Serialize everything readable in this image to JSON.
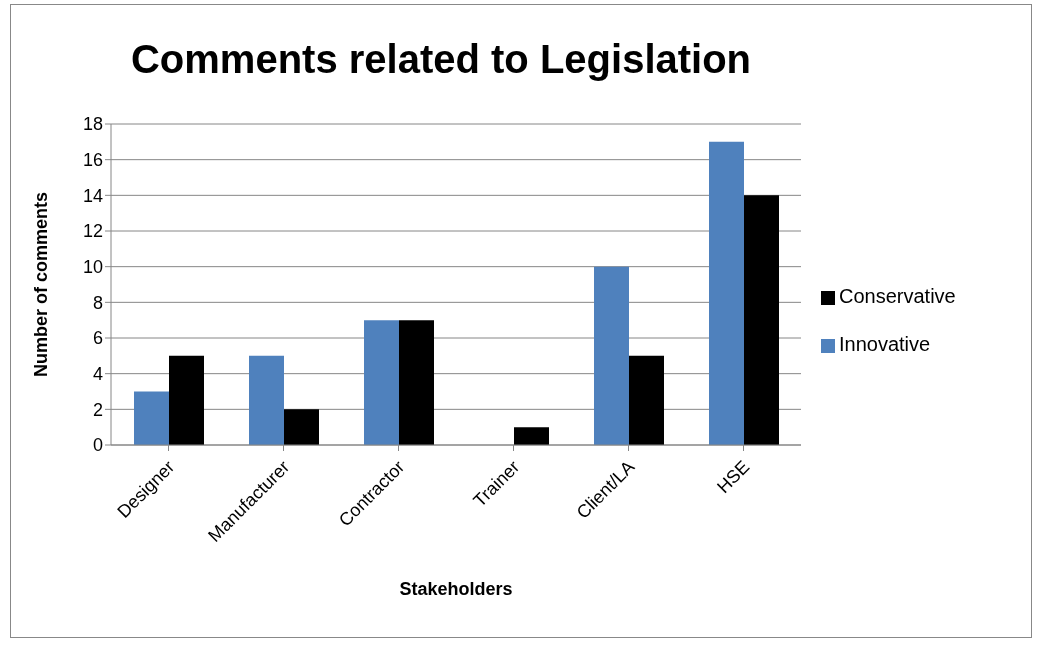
{
  "chart_data": {
    "type": "bar",
    "title": "Comments related to Legislation",
    "xlabel": "Stakeholders",
    "ylabel": "Number of comments",
    "categories": [
      "Designer",
      "Manufacturer",
      "Contractor",
      "Trainer",
      "Client/LA",
      "HSE"
    ],
    "series": [
      {
        "name": "Innovative",
        "color": "#4f81bd",
        "values": [
          3,
          5,
          7,
          0,
          10,
          17
        ]
      },
      {
        "name": "Conservative",
        "color": "#000000",
        "values": [
          5,
          2,
          7,
          1,
          5,
          14
        ]
      }
    ],
    "ylim": [
      0,
      18
    ],
    "yticks": [
      0,
      2,
      4,
      6,
      8,
      10,
      12,
      14,
      16,
      18
    ],
    "grid": "y",
    "legend": "right"
  }
}
